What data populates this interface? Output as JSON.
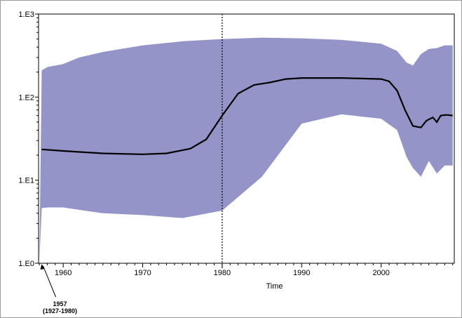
{
  "chart_data": {
    "type": "area",
    "xlabel": "Time",
    "ylabel": "",
    "x_range": [
      1956.9,
      2009.2
    ],
    "y_range": [
      1,
      1000
    ],
    "y_scale": "log",
    "x_ticks": [
      "1960",
      "1970",
      "1980",
      "1990",
      "2000"
    ],
    "y_ticks": [
      "1.E0",
      "1.E1",
      "1.E2",
      "1.E3"
    ],
    "grid": false,
    "legend": "none",
    "colors": {
      "band": "#9594c8",
      "median": "#000000",
      "vline": "#000000"
    },
    "band": {
      "x": [
        1957.0,
        1957.3,
        1958,
        1960,
        1962,
        1965,
        1970,
        1975,
        1980,
        1985,
        1990,
        1995,
        2000,
        2002,
        2003.2,
        2004,
        2005,
        2006,
        2007,
        2008,
        2009
      ],
      "upper": [
        1.0,
        210,
        230,
        250,
        300,
        350,
        420,
        470,
        500,
        520,
        510,
        490,
        440,
        360,
        260,
        240,
        330,
        380,
        390,
        420,
        420
      ],
      "lower": [
        1.0,
        4.6,
        4.7,
        4.7,
        4.4,
        4.0,
        3.8,
        3.5,
        4.3,
        11,
        48,
        62,
        55,
        40,
        19,
        14,
        11,
        17,
        12,
        15,
        15
      ]
    },
    "median": {
      "x": [
        1957.3,
        1960,
        1965,
        1970,
        1973,
        1976,
        1978,
        1980,
        1982,
        1984,
        1986,
        1988,
        1990,
        1995,
        2000,
        2001,
        2002,
        2003,
        2004,
        2005,
        2005.7,
        2006.5,
        2007,
        2007.5,
        2008.2,
        2009
      ],
      "y": [
        23.5,
        22.5,
        21,
        20.5,
        21,
        24,
        31,
        60,
        110,
        140,
        150,
        165,
        170,
        170,
        165,
        155,
        120,
        70,
        45,
        43,
        52,
        57,
        50,
        60,
        61,
        60
      ]
    },
    "vline_x": 1980,
    "annotations": [
      {
        "x": 1957.3,
        "lines": [
          "1957",
          "(1927-1980)"
        ]
      }
    ]
  }
}
